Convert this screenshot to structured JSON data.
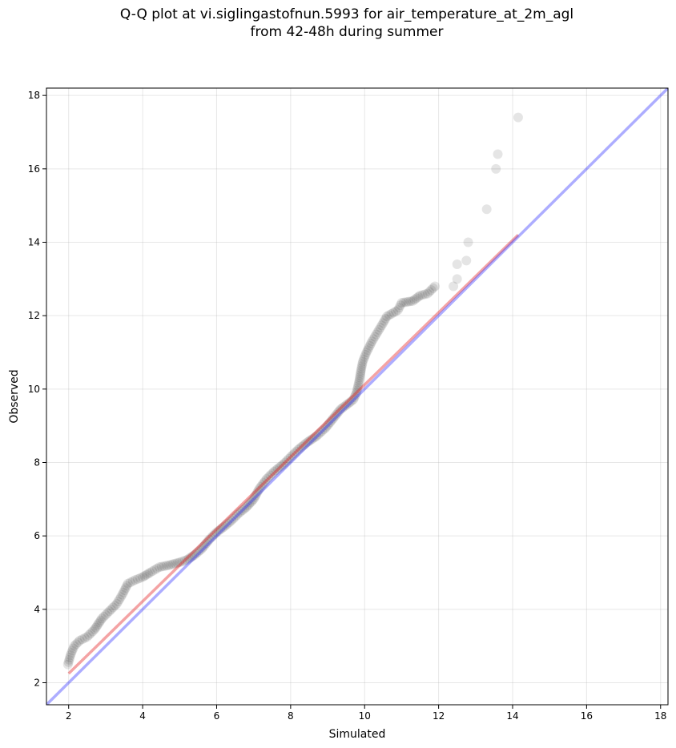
{
  "title": {
    "line1": "Q-Q plot at vi.siglingastofnun.5993 for air_temperature_at_2m_agl",
    "line2": "from 42-48h during summer"
  },
  "chart_data": {
    "type": "scatter",
    "xlabel": "Simulated",
    "ylabel": "Observed",
    "xlim": [
      1.4,
      18.2
    ],
    "ylim": [
      1.4,
      18.2
    ],
    "xticks": [
      2,
      4,
      6,
      8,
      10,
      12,
      14,
      16,
      18
    ],
    "yticks": [
      2,
      4,
      6,
      8,
      10,
      12,
      14,
      16,
      18
    ],
    "grid": true,
    "colors": {
      "points": "#000000",
      "fit_line": "#e41a1c",
      "identity_line": "#3333ff"
    },
    "identity_line": {
      "from": [
        1.4,
        1.4
      ],
      "to": [
        18.2,
        18.2
      ]
    },
    "fit_line": {
      "from": [
        2.0,
        2.25
      ],
      "to": [
        14.15,
        14.2
      ]
    },
    "quantile_curve": [
      [
        1.98,
        2.5
      ],
      [
        2.05,
        2.75
      ],
      [
        2.15,
        3.0
      ],
      [
        2.3,
        3.15
      ],
      [
        2.5,
        3.25
      ],
      [
        2.7,
        3.45
      ],
      [
        2.9,
        3.75
      ],
      [
        3.1,
        3.95
      ],
      [
        3.3,
        4.15
      ],
      [
        3.45,
        4.4
      ],
      [
        3.6,
        4.7
      ],
      [
        3.8,
        4.8
      ],
      [
        4.0,
        4.88
      ],
      [
        4.2,
        5.0
      ],
      [
        4.45,
        5.15
      ],
      [
        4.7,
        5.2
      ],
      [
        5.0,
        5.28
      ],
      [
        5.2,
        5.35
      ],
      [
        5.4,
        5.48
      ],
      [
        5.6,
        5.65
      ],
      [
        5.8,
        5.9
      ],
      [
        6.0,
        6.1
      ],
      [
        6.2,
        6.25
      ],
      [
        6.4,
        6.42
      ],
      [
        6.6,
        6.62
      ],
      [
        6.8,
        6.78
      ],
      [
        7.0,
        7.0
      ],
      [
        7.15,
        7.28
      ],
      [
        7.35,
        7.55
      ],
      [
        7.55,
        7.75
      ],
      [
        7.8,
        7.95
      ],
      [
        8.0,
        8.15
      ],
      [
        8.2,
        8.35
      ],
      [
        8.45,
        8.55
      ],
      [
        8.7,
        8.72
      ],
      [
        8.95,
        8.95
      ],
      [
        9.15,
        9.2
      ],
      [
        9.35,
        9.45
      ],
      [
        9.55,
        9.6
      ],
      [
        9.7,
        9.72
      ],
      [
        9.78,
        9.9
      ],
      [
        9.85,
        10.2
      ],
      [
        9.9,
        10.5
      ],
      [
        9.95,
        10.75
      ],
      [
        10.05,
        11.0
      ],
      [
        10.2,
        11.3
      ],
      [
        10.35,
        11.55
      ],
      [
        10.5,
        11.8
      ],
      [
        10.6,
        11.98
      ],
      [
        10.9,
        12.15
      ],
      [
        11.0,
        12.35
      ],
      [
        11.3,
        12.4
      ],
      [
        11.5,
        12.55
      ],
      [
        11.7,
        12.6
      ],
      [
        11.9,
        12.8
      ]
    ],
    "upper_tail": [
      [
        12.4,
        12.8
      ],
      [
        12.5,
        13.0
      ],
      [
        12.5,
        13.4
      ],
      [
        12.75,
        13.5
      ],
      [
        12.8,
        14.0
      ],
      [
        13.3,
        14.9
      ],
      [
        13.55,
        16.0
      ],
      [
        13.6,
        16.4
      ],
      [
        14.15,
        17.4
      ]
    ]
  }
}
